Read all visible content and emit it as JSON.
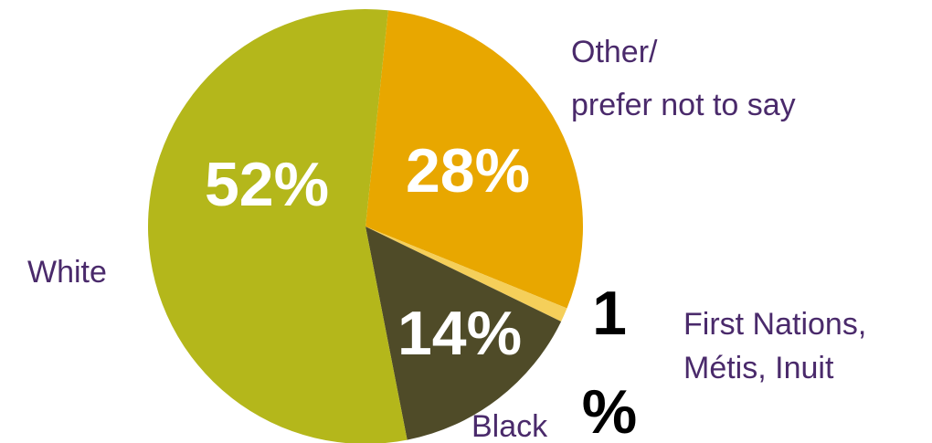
{
  "chart_data": {
    "type": "pie",
    "slices": [
      {
        "name": "Other/ prefer not to say",
        "label_lines": [
          "Other/",
          "prefer not to say"
        ],
        "value": 28,
        "value_label": "28%",
        "color": "#e8a700"
      },
      {
        "name": "First Nations, Métis, Inuit",
        "label_lines": [
          "First Nations,",
          "Métis, Inuit"
        ],
        "value": 1,
        "value_label_lines": [
          "1",
          "%"
        ],
        "color": "#f5cf5a"
      },
      {
        "name": "Black",
        "label_lines": [
          "Black"
        ],
        "value": 14,
        "value_label": "14%",
        "color": "#4f4b28"
      },
      {
        "name": "White",
        "label_lines": [
          "White"
        ],
        "value": 52,
        "value_label": "52%",
        "color": "#b4b71b"
      }
    ]
  }
}
